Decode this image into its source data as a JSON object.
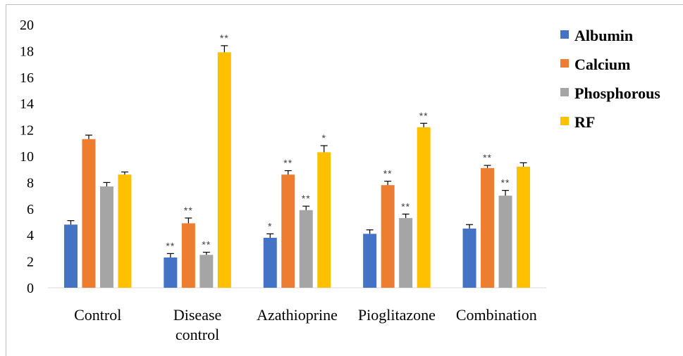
{
  "chart_data": {
    "type": "bar",
    "categories": [
      "Control",
      "Disease control",
      "Azathioprine",
      "Pioglitazone",
      "Combination"
    ],
    "category_label_lines": [
      [
        "Control"
      ],
      [
        "Disease",
        "control"
      ],
      [
        "Azathioprine"
      ],
      [
        "Pioglitazone"
      ],
      [
        "Combination"
      ]
    ],
    "ylim": [
      0,
      20
    ],
    "yticks": [
      0,
      2,
      4,
      6,
      8,
      10,
      12,
      14,
      16,
      18,
      20
    ],
    "grid": false,
    "legend_position": "right",
    "series": [
      {
        "name": "Albumin",
        "color": "#4472C4",
        "values": [
          4.8,
          2.3,
          3.8,
          4.1,
          4.5
        ],
        "errors": [
          0.3,
          0.3,
          0.3,
          0.3,
          0.3
        ],
        "significance": [
          "",
          "**",
          "*",
          "",
          ""
        ]
      },
      {
        "name": "Calcium",
        "color": "#ED7D31",
        "values": [
          11.3,
          4.9,
          8.6,
          7.8,
          9.1
        ],
        "errors": [
          0.3,
          0.4,
          0.3,
          0.3,
          0.2
        ],
        "significance": [
          "",
          "**",
          "**",
          "**",
          "**"
        ]
      },
      {
        "name": "Phosphorous",
        "color": "#A5A5A5",
        "values": [
          7.7,
          2.5,
          5.9,
          5.3,
          7.0
        ],
        "errors": [
          0.3,
          0.2,
          0.3,
          0.3,
          0.4
        ],
        "significance": [
          "",
          "**",
          "**",
          "**",
          "**"
        ]
      },
      {
        "name": "RF",
        "color": "#FFC000",
        "values": [
          8.6,
          17.9,
          10.3,
          12.2,
          9.2
        ],
        "errors": [
          0.2,
          0.5,
          0.5,
          0.3,
          0.3
        ],
        "significance": [
          "",
          "**",
          "*",
          "**",
          ""
        ]
      }
    ]
  }
}
